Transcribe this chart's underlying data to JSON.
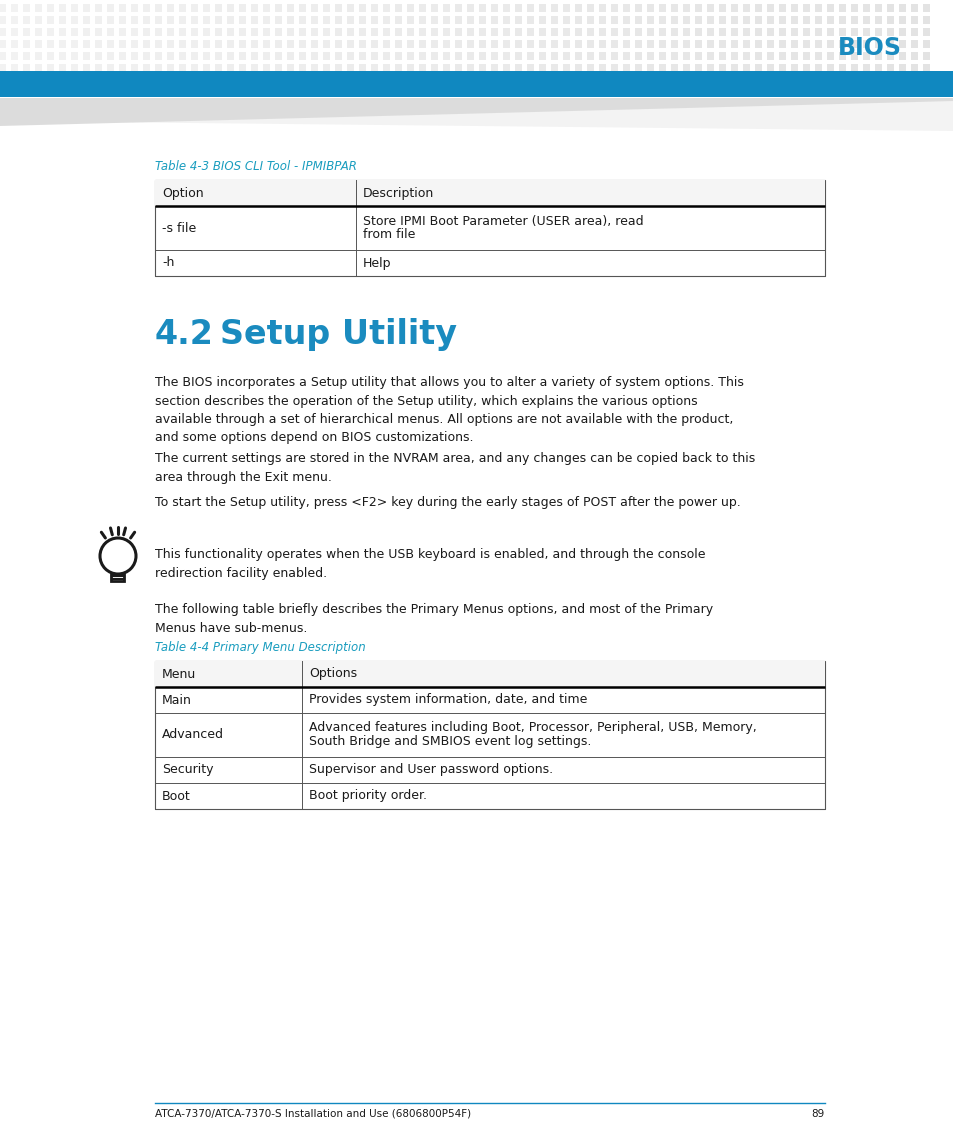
{
  "page_title": "BIOS",
  "header_dot_color": "#cccccc",
  "bios_text_color": "#1a8bbf",
  "table3_caption": "Table 4-3 BIOS CLI Tool - IPMIBPAR",
  "table3_header": [
    "Option",
    "Description"
  ],
  "table3_rows": [
    [
      "-s file",
      "Store IPMI Boot Parameter (USER area), read\nfrom file"
    ],
    [
      "-h",
      "Help"
    ]
  ],
  "section_num": "4.2",
  "section_title": "Setup Utility",
  "section_color": "#1a8bbf",
  "body_text1": "The BIOS incorporates a Setup utility that allows you to alter a variety of system options. This\nsection describes the operation of the Setup utility, which explains the various options\navailable through a set of hierarchical menus. All options are not available with the product,\nand some options depend on BIOS customizations.",
  "body_text2": "The current settings are stored in the NVRAM area, and any changes can be copied back to this\narea through the Exit menu.",
  "body_text3": "To start the Setup utility, press <F2> key during the early stages of POST after the power up.",
  "tip_text": "This functionality operates when the USB keyboard is enabled, and through the console\nredirection facility enabled.",
  "table4_intro": "The following table briefly describes the Primary Menus options, and most of the Primary\nMenus have sub-menus.",
  "table4_caption": "Table 4-4 Primary Menu Description",
  "table4_header": [
    "Menu",
    "Options"
  ],
  "table4_rows": [
    [
      "Main",
      "Provides system information, date, and time"
    ],
    [
      "Advanced",
      "Advanced features including Boot, Processor, Peripheral, USB, Memory,\nSouth Bridge and SMBIOS event log settings."
    ],
    [
      "Security",
      "Supervisor and User password options."
    ],
    [
      "Boot",
      "Boot priority order."
    ]
  ],
  "footer_text": "ATCA-7370/ATCA-7370-S Installation and Use (6806800P54F)",
  "footer_page": "89",
  "caption_color": "#1a9dbf",
  "table_border_color": "#555555",
  "text_color": "#1a1a1a",
  "background_color": "#ffffff",
  "header_bar_color": "#1088c0",
  "shadow_color": "#bbbbbb"
}
